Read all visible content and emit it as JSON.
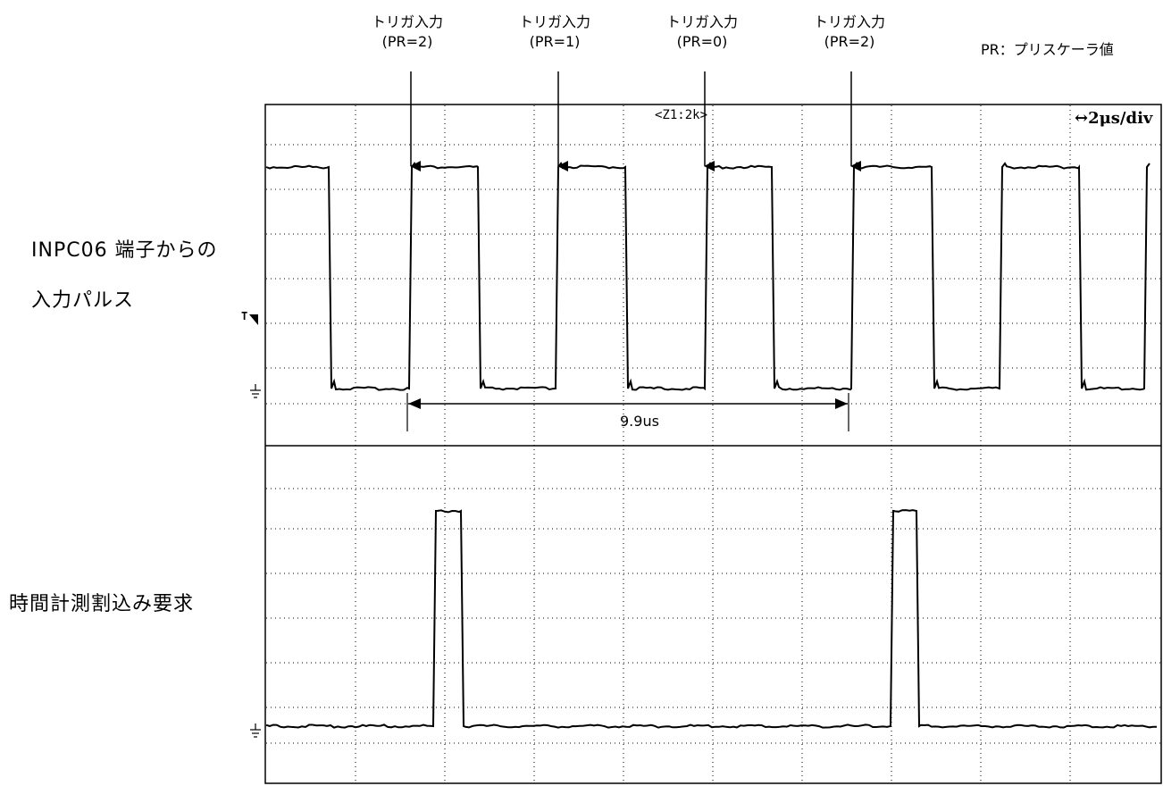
{
  "legend": "PR：プリスケーラ値",
  "triggers": [
    {
      "label": "トリガ入力",
      "pr": "(PR=2)"
    },
    {
      "label": "トリガ入力",
      "pr": "(PR=1)"
    },
    {
      "label": "トリガ入力",
      "pr": "(PR=0)"
    },
    {
      "label": "トリガ入力",
      "pr": "(PR=2)"
    }
  ],
  "channel1": {
    "label_line1": "INPC06 端子からの",
    "label_line2": "入力パルス"
  },
  "channel2": {
    "label": "時間計測割込み要求"
  },
  "scope": {
    "zoom_text": "<Z1:2k>",
    "time_div": "↔2μs/div",
    "trigger_marker": "T",
    "ground_marker": "⏚",
    "measurement": "9.9us"
  },
  "colors": {
    "trace": "#000000",
    "grid": "#000000",
    "background": "#ffffff"
  }
}
